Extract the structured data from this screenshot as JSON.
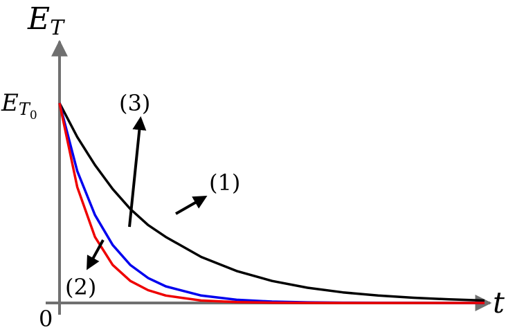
{
  "chart_data": {
    "type": "line",
    "title": "",
    "xlabel": "t",
    "ylabel": "E_T",
    "y_start_label": "E_{T_0}",
    "origin_label": "0",
    "xlim": [
      0,
      6
    ],
    "ylim": [
      0,
      1
    ],
    "grid": false,
    "x": [
      0,
      0.25,
      0.5,
      0.75,
      1,
      1.25,
      1.5,
      2,
      2.5,
      3,
      3.5,
      4,
      4.5,
      5,
      5.5,
      6
    ],
    "series": [
      {
        "label": "(1)",
        "color": "#000000",
        "values": [
          1,
          0.83,
          0.69,
          0.57,
          0.47,
          0.39,
          0.33,
          0.23,
          0.16,
          0.11,
          0.076,
          0.053,
          0.037,
          0.026,
          0.018,
          0.012
        ]
      },
      {
        "label": "(3)",
        "color": "#0000ee",
        "values": [
          1,
          0.66,
          0.44,
          0.29,
          0.19,
          0.125,
          0.083,
          0.037,
          0.016,
          0.007,
          0.003,
          0.0013,
          0.0006,
          0.0003,
          0.0001,
          0.0001
        ]
      },
      {
        "label": "(2)",
        "color": "#ee0000",
        "values": [
          1,
          0.58,
          0.33,
          0.19,
          0.11,
          0.064,
          0.037,
          0.012,
          0.004,
          0.0013,
          0.0004,
          0.0001,
          0,
          0,
          0,
          0
        ]
      }
    ],
    "arrows": [
      {
        "label": "(1)",
        "direction": "up-right"
      },
      {
        "label": "(2)",
        "direction": "down-left"
      },
      {
        "label": "(3)",
        "direction": "up"
      }
    ]
  }
}
